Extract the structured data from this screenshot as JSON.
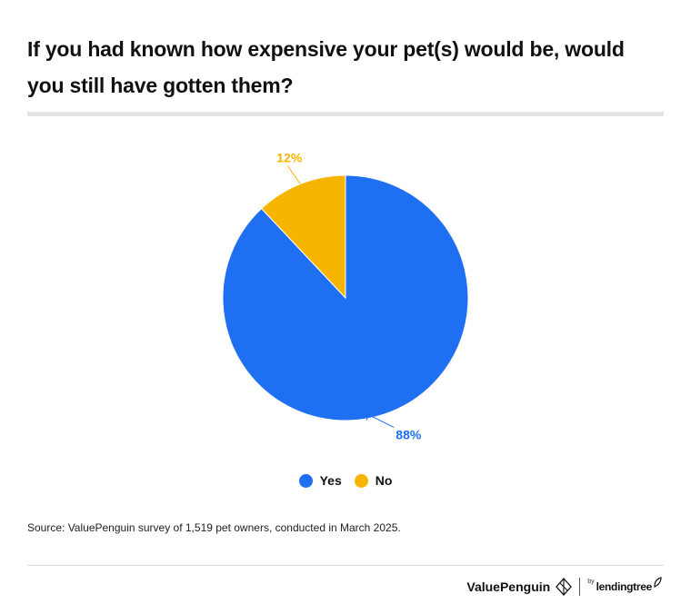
{
  "title": "If you had known how expensive your pet(s) would be, would you still have gotten them?",
  "source": "Source: ValuePenguin survey of 1,519 pet owners, conducted in March 2025.",
  "brand": {
    "valuepenguin": "ValuePenguin",
    "by": "by",
    "lendingtree": "lendingtree",
    "logo_icon": "penguin-diamond-icon",
    "leaf_icon": "leaf-icon"
  },
  "colors": {
    "Yes": "#1F6FF2",
    "No": "#F7B500"
  },
  "chart_data": {
    "type": "pie",
    "slices": [
      {
        "label": "Yes",
        "value": 88,
        "display": "88%"
      },
      {
        "label": "No",
        "value": 12,
        "display": "12%"
      }
    ],
    "legend": [
      "Yes",
      "No"
    ],
    "legend_position": "bottom"
  }
}
